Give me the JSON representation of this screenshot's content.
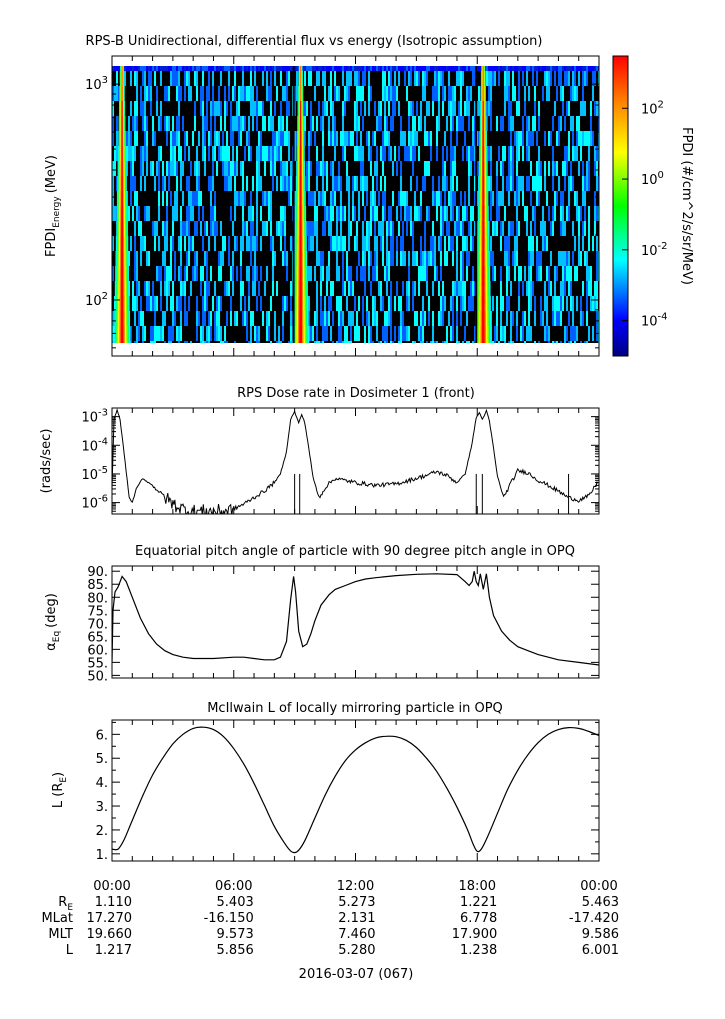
{
  "chart_data": [
    {
      "type": "heatmap",
      "title": "RPS-B  Unidirectional, differential flux vs energy (Isotropic assumption)",
      "ylabel_main": "FPDI",
      "ylabel_sub": "Energy",
      "ylabel_unit": "(MeV)",
      "y_scale": "log",
      "ylim": [
        55,
        1350
      ],
      "y_ticks": [
        {
          "value": 100,
          "base": "10",
          "exp": "2"
        },
        {
          "value": 1000,
          "base": "10",
          "exp": "3"
        }
      ],
      "colorbar": {
        "label": "FPDI (#/cm^2/s/sr/MeV)",
        "scale": "log",
        "range": [
          1e-05,
          3000
        ],
        "ticks": [
          {
            "value": 0.0001,
            "base": "10",
            "exp": "-4"
          },
          {
            "value": 0.01,
            "base": "10",
            "exp": "-2"
          },
          {
            "value": 1,
            "base": "10",
            "exp": "0"
          },
          {
            "value": 100,
            "base": "10",
            "exp": "2"
          }
        ]
      },
      "bright_band_hours": [
        0.2,
        9.0,
        18.0
      ]
    },
    {
      "type": "line",
      "title": "RPS  Dose rate in Dosimeter 1 (front)",
      "ylabel": "(rads/sec)",
      "y_scale": "log",
      "ylim": [
        4e-07,
        0.002
      ],
      "y_ticks": [
        {
          "value": 1e-06,
          "base": "10",
          "exp": "-6"
        },
        {
          "value": 1e-05,
          "base": "10",
          "exp": "-5"
        },
        {
          "value": 0.0001,
          "base": "10",
          "exp": "-4"
        },
        {
          "value": 0.001,
          "base": "10",
          "exp": "-3"
        }
      ],
      "series": [
        {
          "x": [
            0.0,
            0.1,
            0.25,
            0.4,
            0.55,
            0.7,
            0.85,
            1.0,
            1.2,
            1.5,
            2.0,
            2.5,
            3.0,
            3.5,
            4.0,
            4.5,
            5.0,
            5.5,
            6.0,
            6.5,
            7.0,
            7.5,
            8.0,
            8.3,
            8.6,
            8.8,
            9.0,
            9.2,
            9.35,
            9.5,
            9.7,
            9.9,
            10.2,
            10.6,
            11.0,
            12.0,
            13.0,
            14.0,
            15.0,
            15.5,
            16.0,
            16.5,
            17.0,
            17.4,
            17.7,
            17.95,
            18.1,
            18.25,
            18.45,
            18.6,
            18.8,
            19.0,
            19.3,
            19.6,
            20.0,
            20.5,
            21.0,
            21.5,
            22.0,
            22.5,
            23.0,
            23.5,
            24.0
          ],
          "y": [
            3e-06,
            0.0008,
            0.0017,
            0.0008,
            0.0001,
            1.2e-05,
            1.5e-06,
            1e-06,
            3e-06,
            7e-06,
            4e-06,
            1.8e-06,
            9e-07,
            6e-07,
            5e-07,
            5e-07,
            5e-07,
            5e-07,
            6e-07,
            9e-07,
            1.5e-06,
            2.5e-06,
            5e-06,
            1e-05,
            6e-05,
            0.0008,
            0.0015,
            0.0006,
            0.0012,
            0.0006,
            8e-05,
            8e-06,
            1.5e-06,
            4e-06,
            7e-06,
            5e-06,
            4e-06,
            4.5e-06,
            7e-06,
            9e-06,
            1.2e-05,
            9e-06,
            5e-06,
            1e-05,
            8e-05,
            0.0009,
            0.0014,
            0.0008,
            0.0016,
            0.0007,
            8e-05,
            8e-06,
            1.5e-06,
            4e-06,
            1.3e-05,
            1.1e-05,
            6e-06,
            4e-06,
            2.5e-06,
            1.5e-06,
            1.2e-06,
            1.7e-06,
            6e-06
          ]
        }
      ]
    },
    {
      "type": "line",
      "title": "Equatorial pitch angle of particle with 90 degree pitch angle in OPQ",
      "ylabel_main": "α",
      "ylabel_sub": "Eq",
      "ylabel_unit": "(deg)",
      "ylim": [
        49,
        92
      ],
      "y_ticks": [
        50,
        55,
        60,
        65,
        70,
        75,
        80,
        85,
        90
      ],
      "series": [
        {
          "x": [
            0.0,
            0.05,
            0.15,
            0.3,
            0.5,
            0.7,
            1.0,
            1.4,
            1.8,
            2.2,
            2.6,
            3.0,
            3.5,
            4.0,
            5.0,
            6.0,
            6.5,
            7.0,
            7.5,
            8.0,
            8.3,
            8.6,
            8.8,
            8.95,
            9.05,
            9.2,
            9.4,
            9.6,
            9.8,
            10.0,
            10.3,
            10.7,
            11.0,
            11.5,
            12.0,
            12.5,
            13.0,
            14.0,
            15.0,
            16.0,
            17.0,
            17.4,
            17.6,
            17.75,
            17.85,
            17.95,
            18.05,
            18.15,
            18.3,
            18.45,
            18.6,
            18.8,
            19.2,
            19.6,
            20.0,
            20.5,
            21.0,
            21.5,
            22.0,
            23.0,
            24.0
          ],
          "y": [
            55,
            75,
            82,
            84,
            88,
            86,
            80,
            72,
            66,
            62,
            59.5,
            58,
            57,
            56.5,
            56.5,
            57,
            57,
            56.5,
            56,
            56,
            57,
            63,
            79,
            88,
            82,
            67,
            61,
            62,
            66,
            71,
            77,
            81,
            83,
            84.5,
            86,
            87,
            87.5,
            88.3,
            88.8,
            89,
            88.7,
            86,
            84.5,
            86,
            90,
            86,
            84.5,
            89,
            83,
            89,
            80,
            73,
            67,
            63.5,
            61,
            59.5,
            58,
            57,
            56,
            55,
            54
          ]
        }
      ]
    },
    {
      "type": "line",
      "title": "McIlwain L of locally mirroring particle in OPQ",
      "ylabel_main": "L (R",
      "ylabel_sub": "E",
      "ylabel_unit": ")",
      "ylim": [
        0.7,
        6.6
      ],
      "y_ticks": [
        1,
        2,
        3,
        4,
        5,
        6
      ],
      "y_tick_labels": [
        "1.",
        "2.",
        "3.",
        "4.",
        "5.",
        "6."
      ],
      "series": [
        {
          "x": [
            0.0,
            0.3,
            0.6,
            1.0,
            1.5,
            2.0,
            2.5,
            3.0,
            3.5,
            4.0,
            4.5,
            5.0,
            5.5,
            6.0,
            6.5,
            7.0,
            7.5,
            8.0,
            8.5,
            8.8,
            9.0,
            9.2,
            9.5,
            10.0,
            10.5,
            11.0,
            11.5,
            12.0,
            12.5,
            13.0,
            13.5,
            14.0,
            14.5,
            15.0,
            15.5,
            16.0,
            16.5,
            17.0,
            17.5,
            17.8,
            18.0,
            18.2,
            18.5,
            19.0,
            19.5,
            20.0,
            20.5,
            21.0,
            21.5,
            22.0,
            22.5,
            23.0,
            23.5,
            24.0
          ],
          "y": [
            1.2,
            1.2,
            1.6,
            2.4,
            3.4,
            4.3,
            5.0,
            5.6,
            6.0,
            6.25,
            6.3,
            6.2,
            5.9,
            5.4,
            4.75,
            3.95,
            3.05,
            2.15,
            1.45,
            1.12,
            1.05,
            1.15,
            1.55,
            2.5,
            3.45,
            4.25,
            4.9,
            5.35,
            5.65,
            5.85,
            5.92,
            5.9,
            5.75,
            5.45,
            5.0,
            4.45,
            3.75,
            2.95,
            2.05,
            1.4,
            1.1,
            1.2,
            1.7,
            2.7,
            3.7,
            4.5,
            5.15,
            5.65,
            6.0,
            6.2,
            6.28,
            6.25,
            6.12,
            5.95
          ]
        }
      ]
    }
  ],
  "time_axis": {
    "range_hours": [
      0,
      24
    ],
    "major_ticks": [
      {
        "hour": 0,
        "label": "00:00"
      },
      {
        "hour": 6,
        "label": "06:00"
      },
      {
        "hour": 12,
        "label": "12:00"
      },
      {
        "hour": 18,
        "label": "18:00"
      },
      {
        "hour": 24,
        "label": "00:00"
      }
    ],
    "date_label": "2016-03-07 (067)"
  },
  "ephemeris": {
    "rows": [
      {
        "name": "R",
        "sub": "E",
        "values": [
          "1.110",
          "5.403",
          "5.273",
          "1.221",
          "5.463"
        ]
      },
      {
        "name": "MLat",
        "sub": "",
        "values": [
          "17.270",
          "-16.150",
          "2.131",
          "6.778",
          "-17.420"
        ]
      },
      {
        "name": "MLT",
        "sub": "",
        "values": [
          "19.660",
          "9.573",
          "7.460",
          "17.900",
          "9.586"
        ]
      },
      {
        "name": "L",
        "sub": "",
        "values": [
          "1.217",
          "5.856",
          "5.280",
          "1.238",
          "6.001"
        ]
      }
    ]
  }
}
